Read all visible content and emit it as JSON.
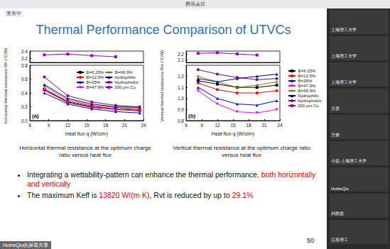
{
  "window": {
    "title": "腾讯会议",
    "status": "发言中",
    "share_label": "HuiheQiu的屏幕共享"
  },
  "participants": [
    "上海理工大学",
    "上海理工大学",
    "上海理工大学",
    "王蓉",
    "王健",
    "小蓝-上海理工大学",
    "HuiheQiu",
    "刘教授",
    "江苏理工"
  ],
  "slide": {
    "title": "Thermal Performance Comparison of UTVCs",
    "captions": [
      "Horizontal thermal resistance at the optimum charge ratio versus heat flux",
      "Vertical thermal resistance at the optimum charge ratio versus heat flux"
    ],
    "bullets": [
      [
        {
          "text": "Integrating a wettability-pattern can enhance the thermal performance, "
        },
        {
          "text": "both horizontally and vertically",
          "color": "#e00000"
        }
      ],
      [
        {
          "text": "The maximum Keff is "
        },
        {
          "text": "13820 W/(m·K)",
          "color": "#e00000"
        },
        {
          "text": ", Rvt is reduced by up to "
        },
        {
          "text": "29.1%",
          "color": "#e00000"
        }
      ]
    ],
    "page": "50"
  },
  "chart_data": [
    {
      "type": "line",
      "annotations": [
        "(a)"
      ],
      "xlabel": "Heat flux q (W/cm²)",
      "ylabel": "Horizontal thermal resistance Rh (°C/W)",
      "x": [
        8.3,
        12,
        15.8,
        19.6,
        23.4
      ],
      "xlim": [
        6,
        24
      ],
      "xticks": [
        6,
        9,
        12,
        15,
        18,
        21,
        24
      ],
      "ylim": [
        0,
        0.8
      ],
      "yticks": [
        {
          "value": 0,
          "label": "0.0"
        },
        0.2,
        0.4,
        0.6,
        0.8
      ],
      "y2lim": [
        2.1,
        2.4
      ],
      "y2ticks": [
        2.2,
        2.4
      ],
      "grid": false,
      "legend": "upper right",
      "series": [
        {
          "name": "Φ=6.25%",
          "color": "#000000",
          "marker": "square",
          "values": [
            0.45,
            0.27,
            0.2,
            0.17,
            0.15
          ]
        },
        {
          "name": "Φ=12.5%",
          "color": "#ff0000",
          "marker": "circle",
          "values": [
            0.44,
            0.26,
            0.19,
            0.16,
            0.14
          ]
        },
        {
          "name": "Φ=25%",
          "color": "#0000ff",
          "marker": "triangle",
          "values": [
            0.4,
            0.24,
            0.17,
            0.13,
            0.11
          ]
        },
        {
          "name": "Φ=47.9%",
          "color": "#ff00ff",
          "marker": "triangle_down",
          "values": [
            0.46,
            0.28,
            0.21,
            0.17,
            0.16
          ]
        },
        {
          "name": "Φ=66.9%",
          "color": "#808000",
          "marker": "diamond",
          "values": [
            0.5,
            0.3,
            0.22,
            0.19,
            0.17
          ]
        },
        {
          "name": "Hydrophilic",
          "color": "#000080",
          "marker": "triangle",
          "values": [
            0.52,
            0.32,
            0.24,
            0.2,
            0.19
          ]
        },
        {
          "name": "Hydrophobic",
          "color": "#800080",
          "marker": "circle",
          "values": [
            0.63,
            0.36,
            0.27,
            0.22,
            0.2
          ]
        },
        {
          "name": "200 μm Cu",
          "color": "#9900cc",
          "marker": "square",
          "axis": "y2",
          "values": [
            2.3,
            2.32,
            2.28,
            2.25,
            null
          ]
        }
      ]
    },
    {
      "type": "line",
      "annotations": [
        "(b)"
      ],
      "xlabel": "Heat flux q (W/cm²)",
      "ylabel": "Vertical thermal resistance Rvt (°C/W)",
      "x": [
        8.3,
        12,
        15.8,
        19.6,
        23.4
      ],
      "xlim": [
        6,
        24
      ],
      "xticks": [
        6,
        9,
        12,
        15,
        18,
        21,
        24
      ],
      "ylim": [
        0.8,
        1.3
      ],
      "yticks": [
        0.8,
        0.9,
        {
          "value": 1.0,
          "label": "1.0"
        },
        1.1,
        1.2
      ],
      "y2lim": [
        2.05,
        2.25
      ],
      "y2ticks": [
        2.1,
        2.2
      ],
      "grid": false,
      "legend": "right",
      "series": [
        {
          "name": "Φ=6.25%",
          "color": "#000000",
          "marker": "square",
          "values": [
            1.16,
            1.13,
            1.1,
            1.1,
            1.12
          ]
        },
        {
          "name": "Φ=12.5%",
          "color": "#ff0000",
          "marker": "circle",
          "values": [
            1.14,
            1.08,
            1.05,
            1.05,
            1.07
          ]
        },
        {
          "name": "Φ=25%",
          "color": "#0000ff",
          "marker": "triangle",
          "values": [
            1.1,
            1.0,
            0.95,
            0.94,
            0.98
          ]
        },
        {
          "name": "Φ=47.9%",
          "color": "#ff00ff",
          "marker": "triangle_down",
          "values": [
            1.07,
            0.95,
            0.88,
            0.87,
            0.9
          ]
        },
        {
          "name": "Φ=66.9%",
          "color": "#808000",
          "marker": "diamond",
          "values": [
            1.2,
            1.15,
            1.1,
            1.12,
            1.15
          ]
        },
        {
          "name": "Hydrophilic",
          "color": "#000080",
          "marker": "triangle",
          "values": [
            1.18,
            1.15,
            1.18,
            1.2,
            1.22
          ]
        },
        {
          "name": "Hydrophobic",
          "color": "#800080",
          "marker": "circle",
          "values": [
            1.26,
            1.22,
            1.19,
            1.17,
            1.18
          ]
        },
        {
          "name": "200 μm Cu",
          "color": "#9900cc",
          "marker": "square",
          "axis": "y2",
          "values": [
            2.21,
            2.22,
            2.2,
            2.18,
            null
          ]
        }
      ]
    }
  ]
}
